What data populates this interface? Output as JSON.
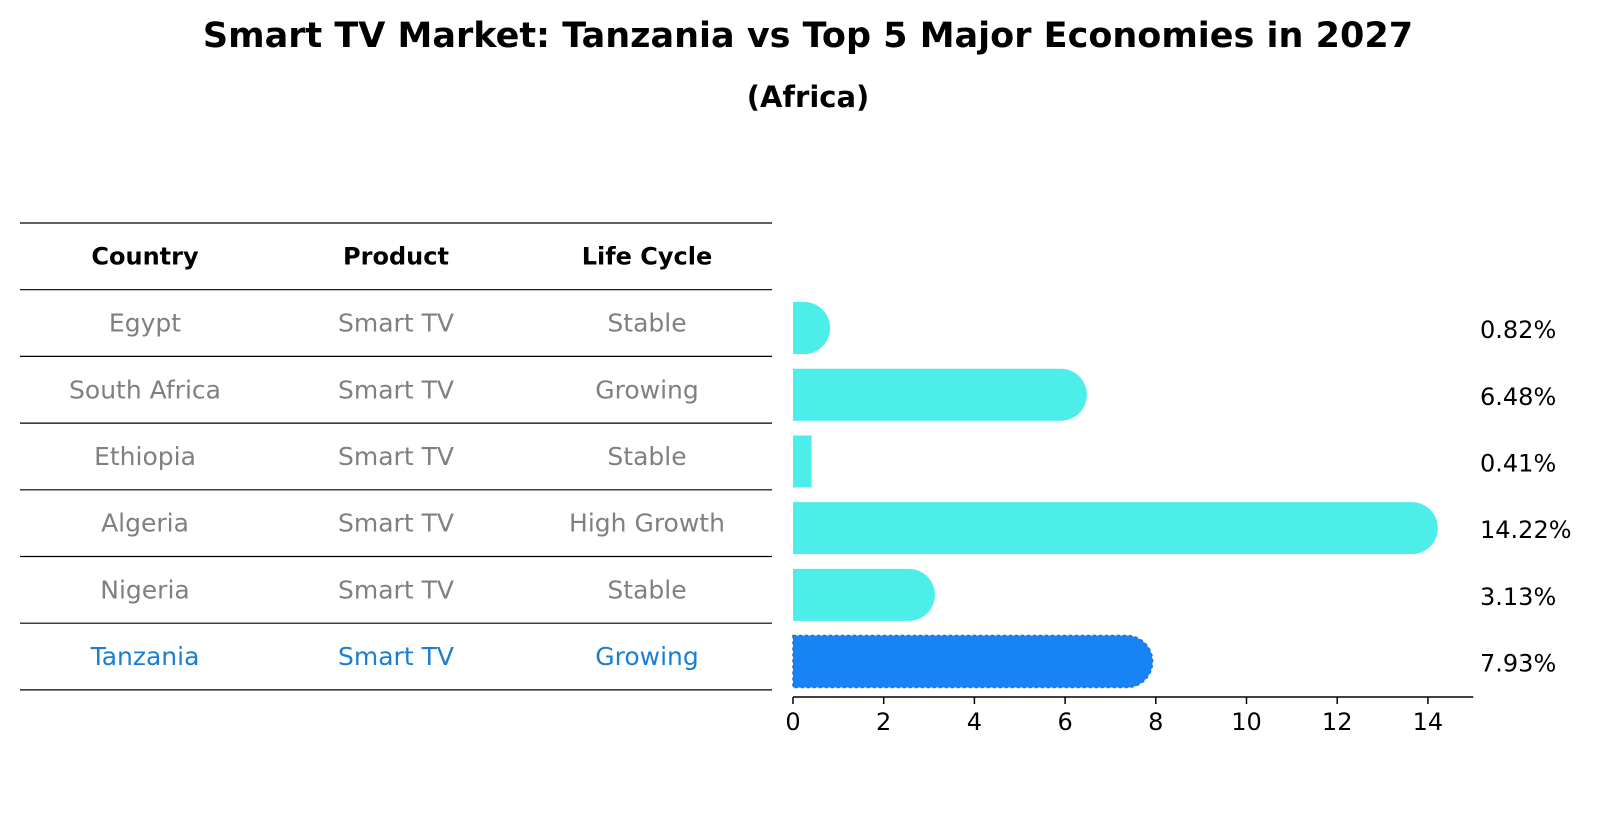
{
  "title": "Smart TV Market: Tanzania vs Top 5 Major Economies in 2027",
  "subtitle": "(Africa)",
  "colors": {
    "bar": "#4DEEEA",
    "highlight": "#1783F5",
    "muted_text": "#808080",
    "highlight_text": "#1A7FD4"
  },
  "table": {
    "headers": [
      "Country",
      "Product",
      "Life Cycle"
    ],
    "rows": [
      {
        "country": "Egypt",
        "product": "Smart TV",
        "life_cycle": "Stable"
      },
      {
        "country": "South Africa",
        "product": "Smart TV",
        "life_cycle": "Growing"
      },
      {
        "country": "Ethiopia",
        "product": "Smart TV",
        "life_cycle": "Stable"
      },
      {
        "country": "Algeria",
        "product": "Smart TV",
        "life_cycle": "High Growth"
      },
      {
        "country": "Nigeria",
        "product": "Smart TV",
        "life_cycle": "Stable"
      },
      {
        "country": "Tanzania",
        "product": "Smart TV",
        "life_cycle": "Growing",
        "highlight": true
      }
    ]
  },
  "chart_data": {
    "type": "bar",
    "orientation": "horizontal",
    "categories": [
      "Egypt",
      "South Africa",
      "Ethiopia",
      "Algeria",
      "Nigeria",
      "Tanzania"
    ],
    "values": [
      0.82,
      6.48,
      0.41,
      14.22,
      3.13,
      7.93
    ],
    "value_labels": [
      "0.82%",
      "6.48%",
      "0.41%",
      "14.22%",
      "3.13%",
      "7.93%"
    ],
    "highlight_category": "Tanzania",
    "xlim": [
      0,
      15
    ],
    "xticks": [
      0,
      2,
      4,
      6,
      8,
      10,
      12,
      14
    ],
    "grid": false,
    "title": "Smart TV Market: Tanzania vs Top 5 Major Economies in 2027",
    "subtitle": "(Africa)"
  }
}
